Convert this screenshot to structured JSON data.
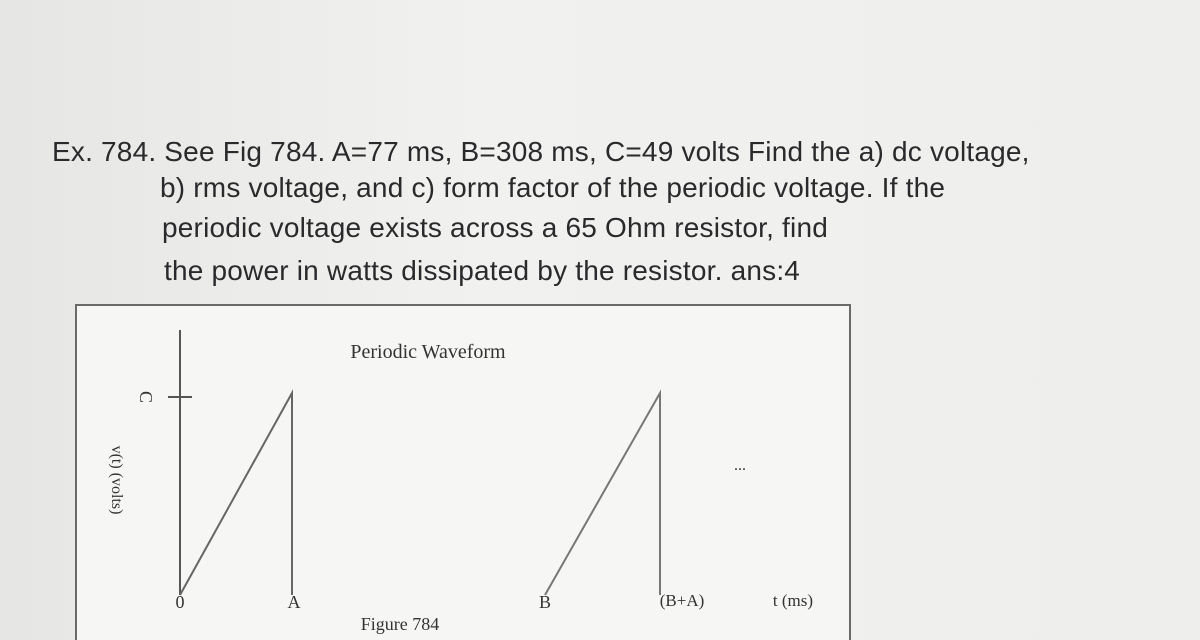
{
  "problem": {
    "lines": [
      "Ex. 784. See Fig 784. A=77 ms, B=308 ms, C=49 volts Find the a) dc voltage,",
      "b) rms voltage, and c) form factor of the periodic voltage.  If the",
      "periodic voltage exists across a 65 Ohm resistor, find",
      "the power in watts dissipated by the resistor.  ans:4"
    ]
  },
  "figure": {
    "title": "Periodic Waveform",
    "y_label": "v(t)  (volts)",
    "y_tick": "C",
    "x_ticks": [
      "0",
      "A",
      "B",
      "(B+A)"
    ],
    "x_label": "t (ms)",
    "continuation": "...",
    "caption": "Figure 784"
  }
}
